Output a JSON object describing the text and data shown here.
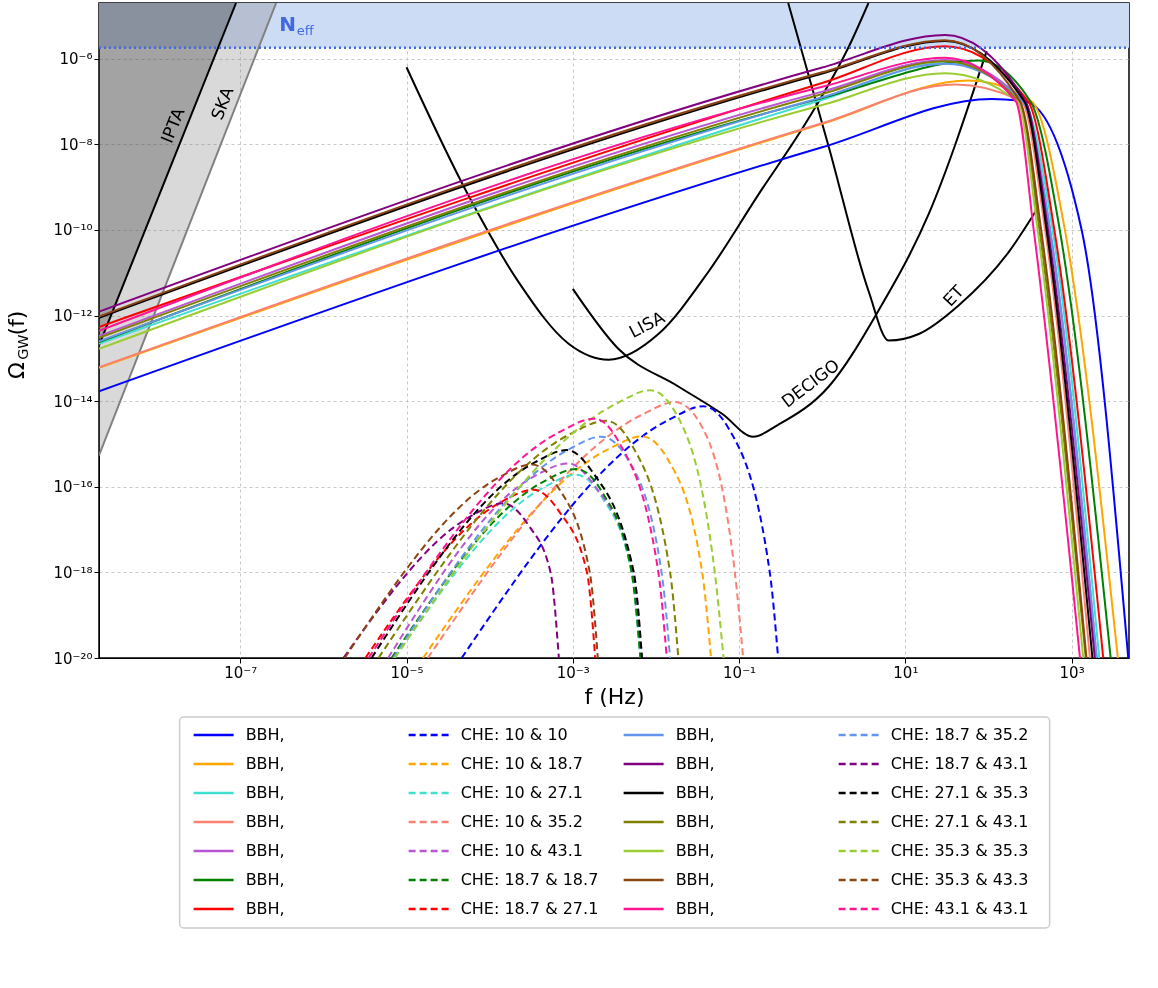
{
  "chart_data": {
    "type": "line",
    "xlabel": "f (Hz)",
    "ylabel": "Ω$_{GW}$(f)",
    "xlim": [
      2e-09,
      4900.0
    ],
    "ylim": [
      1e-20,
      2e-05
    ],
    "log": "xy",
    "grid": true,
    "legend": "bottom",
    "xticks": [
      {
        "value": 1e-07,
        "label": "10⁻⁷"
      },
      {
        "value": 1e-05,
        "label": "10⁻⁵"
      },
      {
        "value": 0.001,
        "label": "10⁻³"
      },
      {
        "value": 0.1,
        "label": "10⁻¹"
      },
      {
        "value": 10,
        "label": "10¹"
      },
      {
        "value": 1000,
        "label": "10³"
      }
    ],
    "yticks": [
      {
        "value": 1e-20,
        "label": "10⁻²⁰"
      },
      {
        "value": 1e-18,
        "label": "10⁻¹⁸"
      },
      {
        "value": 1e-16,
        "label": "10⁻¹⁶"
      },
      {
        "value": 1e-14,
        "label": "10⁻¹⁴"
      },
      {
        "value": 1e-12,
        "label": "10⁻¹²"
      },
      {
        "value": 1e-10,
        "label": "10⁻¹⁰"
      },
      {
        "value": 1e-08,
        "label": "10⁻⁸"
      },
      {
        "value": 1e-06,
        "label": "10⁻⁶"
      }
    ],
    "bands": [
      {
        "axis": "y",
        "from": 1.8e-06,
        "to": 2e-05,
        "label": "N$_{eff}$",
        "color": "#cddcf5"
      }
    ],
    "ref_lines": [
      {
        "axis": "y",
        "value": 1.8e-06,
        "color": "#4169e1",
        "line_style": "dotted"
      }
    ],
    "annotations": [
      {
        "text": "IPTA",
        "x": 2.2e-08,
        "y": 2.1e-08
      },
      {
        "text": "SKA",
        "x": 8.7e-08,
        "y": 6.9e-08
      },
      {
        "text": "LISA",
        "x": 0.0093,
        "y": 3.2e-13
      },
      {
        "text": "DECIGO",
        "x": 0.91,
        "y": 1.45e-14
      },
      {
        "text": "ET",
        "x": 50,
        "y": 1.74e-12
      }
    ],
    "series": [
      {
        "color": "#000000",
        "line_style": "solid",
        "x": [
          2e-09,
          8.9e-08
        ],
        "values": [
          2e-13,
          2e-05
        ],
        "lower": [
          2e-13,
          2e-05
        ],
        "upper": [
          2e-05,
          2e-05
        ]
      },
      {
        "color": "#808080",
        "line_style": "solid",
        "x": [
          2e-09,
          2.7e-07
        ],
        "values": [
          5.4e-16,
          2e-05
        ],
        "lower": [
          5.4e-16,
          2e-05
        ],
        "upper": [
          2e-05,
          2e-05
        ]
      },
      {
        "color": "#000000",
        "line_style": "solid",
        "x": [
          1e-05,
          5.5e-05,
          0.00022,
          0.00089,
          0.0027,
          0.0107,
          0.043,
          0.17,
          0.69,
          2.1,
          3.6
        ],
        "values": [
          6.3e-07,
          6.6e-10,
          6.3e-12,
          2.2e-13,
          9.3e-14,
          3.7e-13,
          1.07e-11,
          6.6e-10,
          4.1e-08,
          1.95e-06,
          2e-05
        ]
      },
      {
        "color": "#000000",
        "line_style": "solid",
        "x": [
          0.001,
          0.0035,
          0.0186,
          0.063,
          0.148,
          0.295,
          1.2,
          4.8,
          19,
          95
        ],
        "values": [
          4.2e-12,
          1.7e-13,
          2.2e-14,
          5e-15,
          1.48e-15,
          2.8e-15,
          2.2e-14,
          1.35e-12,
          2.3e-10,
          1.5e-06
        ]
      },
      {
        "color": "#000000",
        "line_style": "solid",
        "x": [
          0.39,
          1.2,
          3.6,
          6.3,
          14.5,
          44,
          174,
          390
        ],
        "values": [
          2e-05,
          8.7e-09,
          3.8e-12,
          2.6e-13,
          3.7e-13,
          1.74e-12,
          3e-11,
          3.2e-10
        ]
      },
      {
        "name": "BBH,",
        "color": "#0000ff",
        "line_style": "solid",
        "x": [
          2e-09,
          1,
          110,
          280,
          1320,
          4800
        ],
        "values": [
          1.7e-14,
          8.5e-09,
          1.15e-07,
          1e-07,
          1e-10,
          1e-20
        ]
      },
      {
        "name": "BBH,",
        "color": "#ffa500",
        "line_style": "solid",
        "x": [
          2e-09,
          1,
          58,
          330,
          830,
          3600
        ],
        "values": [
          6e-14,
          3e-08,
          3.1e-07,
          1e-07,
          1e-10,
          1e-20
        ]
      },
      {
        "name": "BBH,",
        "color": "#40e0d0",
        "line_style": "solid",
        "x": [
          2e-09,
          1,
          30,
          270,
          590,
          2150
        ],
        "values": [
          2.2e-13,
          1.1e-07,
          7.9e-07,
          1e-07,
          1e-10,
          1e-20
        ]
      },
      {
        "name": "BBH,",
        "color": "#fa8072",
        "line_style": "solid",
        "x": [
          2e-09,
          1,
          40,
          250,
          480,
          1660
        ],
        "values": [
          6.2e-14,
          3.1e-08,
          2.5e-07,
          1e-07,
          1e-10,
          1e-20
        ]
      },
      {
        "name": "BBH,",
        "color": "#ba55d3",
        "line_style": "solid",
        "x": [
          2e-09,
          1,
          30,
          260,
          550,
          2000
        ],
        "values": [
          3.3e-13,
          1.7e-07,
          9.3e-07,
          1e-07,
          1e-10,
          1e-20
        ]
      },
      {
        "name": "BBH,",
        "color": "#008000",
        "line_style": "solid",
        "x": [
          2e-09,
          1,
          76,
          320,
          720,
          2950
        ],
        "values": [
          2.4e-13,
          1.2e-07,
          9.1e-07,
          1e-07,
          1e-10,
          1e-20
        ]
      },
      {
        "name": "BBH,",
        "color": "#ff0000",
        "line_style": "solid",
        "x": [
          2e-09,
          1,
          30,
          300,
          620,
          2400
        ],
        "values": [
          5.4e-13,
          2.7e-07,
          1.95e-06,
          1e-07,
          1e-10,
          1e-20
        ]
      },
      {
        "name": "CHE: 10 & 10",
        "color": "#0000ff",
        "line_style": "dashed",
        "x": [
          4.6e-05,
          0.0148,
          0.037,
          0.074,
          0.234,
          0.295
        ],
        "values": [
          1e-20,
          3.8e-15,
          7.6e-15,
          2.4e-15,
          1e-18,
          1e-20
        ]
      },
      {
        "name": "CHE: 10 & 18.7",
        "color": "#ffa500",
        "line_style": "dashed",
        "x": [
          1.58e-05,
          0.0027,
          0.0068,
          0.0135,
          0.036,
          0.046
        ],
        "values": [
          1e-20,
          7.6e-16,
          1.5e-15,
          4.8e-16,
          1e-18,
          1e-20
        ]
      },
      {
        "name": "CHE: 10 & 27.1",
        "color": "#40e0d0",
        "line_style": "dashed",
        "x": [
          7.2e-06,
          0.00044,
          0.0011,
          0.0022,
          0.0051,
          0.0065
        ],
        "values": [
          1e-20,
          9.5e-17,
          1.9e-16,
          6e-17,
          1e-18,
          1e-20
        ]
      },
      {
        "name": "CHE: 10 & 35.2",
        "color": "#fa8072",
        "line_style": "dashed",
        "x": [
          1.8e-05,
          0.0068,
          0.017,
          0.034,
          0.089,
          0.112
        ],
        "values": [
          1e-20,
          4.8e-15,
          9.5e-15,
          3e-15,
          1e-18,
          1e-20
        ]
      },
      {
        "name": "CHE: 10 & 43.1",
        "color": "#ba55d3",
        "line_style": "dashed",
        "x": [
          6e-06,
          0.00035,
          0.00089,
          0.0018,
          0.0054,
          0.0068
        ],
        "values": [
          1e-20,
          1.8e-16,
          3.5e-16,
          1.1e-16,
          1e-18,
          1e-20
        ]
      },
      {
        "name": "CHE: 18.7 & 18.7",
        "color": "#008000",
        "line_style": "dashed",
        "x": [
          6.6e-06,
          0.00044,
          0.0011,
          0.0022,
          0.0051,
          0.0065
        ],
        "values": [
          1e-20,
          1.3e-16,
          2.6e-16,
          8.1e-17,
          1e-18,
          1e-20
        ]
      },
      {
        "name": "CHE: 18.7 & 27.1",
        "color": "#ff0000",
        "line_style": "dashed",
        "x": [
          3.2e-06,
          0.000135,
          0.00034,
          0.00068,
          0.00148,
          0.00186
        ],
        "values": [
          1e-20,
          4.3e-17,
          8.5e-17,
          2.7e-17,
          1e-18,
          1e-20
        ]
      },
      {
        "name": "BBH,",
        "color": "#6495ed",
        "line_style": "solid",
        "x": [
          2e-09,
          1,
          30,
          260,
          550,
          2000
        ],
        "values": [
          2.5e-13,
          1.26e-07,
          7.6e-07,
          1e-07,
          1e-10,
          1e-20
        ]
      },
      {
        "name": "BBH,",
        "color": "#800080",
        "line_style": "solid",
        "x": [
          2e-09,
          1,
          30,
          280,
          520,
          1900
        ],
        "values": [
          1.23e-12,
          6.2e-07,
          3.6e-06,
          1e-07,
          1e-10,
          1e-20
        ]
      },
      {
        "name": "BBH,",
        "color": "#000000",
        "line_style": "solid",
        "x": [
          2e-09,
          1,
          30,
          270,
          500,
          1780
        ],
        "values": [
          8.9e-13,
          4.5e-07,
          2.6e-06,
          1e-07,
          1e-10,
          1e-20
        ]
      },
      {
        "name": "BBH,",
        "color": "#808000",
        "line_style": "solid",
        "x": [
          2e-09,
          1,
          30,
          234,
          410,
          1480
        ],
        "values": [
          3e-13,
          1.5e-07,
          8.7e-07,
          1e-07,
          1e-10,
          1e-20
        ]
      },
      {
        "name": "BBH,",
        "color": "#9acd32",
        "line_style": "solid",
        "x": [
          2e-09,
          1,
          30,
          224,
          390,
          1380
        ],
        "values": [
          1.66e-13,
          8.3e-08,
          4.6e-07,
          1e-07,
          1e-10,
          1e-20
        ]
      },
      {
        "name": "BBH,",
        "color": "#8b4513",
        "line_style": "solid",
        "x": [
          2e-09,
          1,
          30,
          240,
          430,
          1510
        ],
        "values": [
          9.5e-13,
          4.8e-07,
          2.7e-06,
          1e-07,
          1e-10,
          1e-20
        ]
      },
      {
        "name": "BBH,",
        "color": "#ff1493",
        "line_style": "solid",
        "x": [
          2e-09,
          1,
          30,
          214,
          350,
          1260
        ],
        "values": [
          4.4e-13,
          2.2e-07,
          1.05e-06,
          1e-07,
          1e-10,
          1e-20
        ]
      },
      {
        "name": "CHE: 18.7 & 35.2",
        "color": "#6495ed",
        "line_style": "dashed",
        "x": [
          6.9e-06,
          0.00089,
          0.0022,
          0.0045,
          0.0117,
          0.0148
        ],
        "values": [
          1e-20,
          7.4e-16,
          1.48e-15,
          4.7e-16,
          1e-18,
          1e-20
        ]
      },
      {
        "name": "CHE: 18.7 & 43.1",
        "color": "#800080",
        "line_style": "dashed",
        "x": [
          1.74e-06,
          5.8e-05,
          0.000145,
          0.00029,
          0.00054,
          0.00068
        ],
        "values": [
          1e-20,
          2e-17,
          4.1e-17,
          1.3e-17,
          1e-18,
          1e-20
        ]
      },
      {
        "name": "CHE: 27.1 & 35.3",
        "color": "#000000",
        "line_style": "dashed",
        "x": [
          3.8e-06,
          0.00034,
          0.00085,
          0.0017,
          0.0054,
          0.0068
        ],
        "values": [
          1e-20,
          3.6e-16,
          7.2e-16,
          2.3e-16,
          1e-18,
          1e-20
        ]
      },
      {
        "name": "CHE: 27.1 & 43.1",
        "color": "#808000",
        "line_style": "dashed",
        "x": [
          4.6e-06,
          0.00098,
          0.0025,
          0.0049,
          0.0148,
          0.0186
        ],
        "values": [
          1e-20,
          1.8e-15,
          3.5e-15,
          1.1e-15,
          1e-18,
          1e-20
        ]
      },
      {
        "name": "CHE: 35.3 & 35.3",
        "color": "#9acd32",
        "line_style": "dashed",
        "x": [
          7.2e-06,
          0.0034,
          0.0085,
          0.017,
          0.051,
          0.065
        ],
        "values": [
          1e-20,
          8.9e-15,
          1.8e-14,
          5.6e-15,
          1e-18,
          1e-20
        ]
      },
      {
        "name": "CHE: 35.3 & 43.3",
        "color": "#8b4513",
        "line_style": "dashed",
        "x": [
          1.8e-06,
          0.00013,
          0.00032,
          0.00065,
          0.0016,
          0.002
        ],
        "values": [
          1e-20,
          1.66e-16,
          3.3e-16,
          1.05e-16,
          1e-18,
          1e-20
        ]
      },
      {
        "name": "CHE: 43.1 & 43.1",
        "color": "#ff1493",
        "line_style": "dashed",
        "x": [
          3.5e-06,
          0.00071,
          0.0018,
          0.0035,
          0.0107,
          0.0135
        ],
        "values": [
          1e-20,
          1.95e-15,
          3.9e-15,
          1.2e-15,
          1e-18,
          1e-20
        ]
      }
    ]
  }
}
